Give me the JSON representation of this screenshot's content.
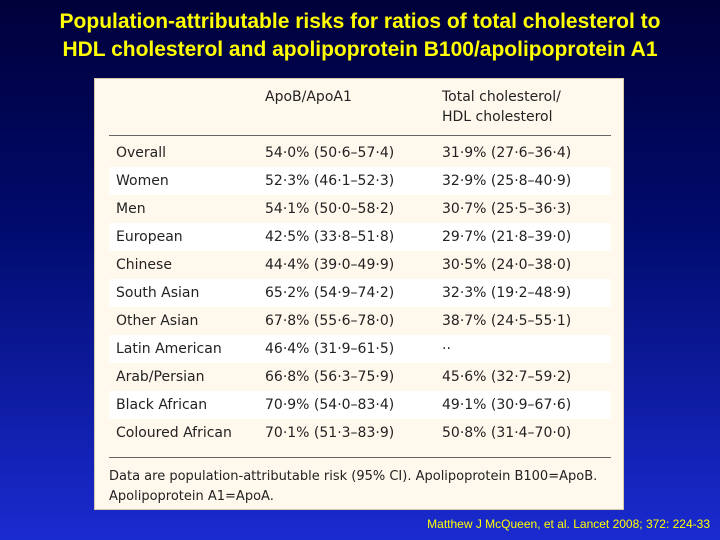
{
  "slide": {
    "title_line1": "Population-attributable risks for ratios of total cholesterol to",
    "title_line2": "HDL cholesterol and apolipoprotein B100/apolipoprotein A1",
    "citation": "Matthew J McQueen, et al. Lancet 2008; 372: 224-33"
  },
  "table": {
    "col1_header": "ApoB/ApoA1",
    "col2_header_line1": "Total cholesterol/",
    "col2_header_line2": "HDL cholesterol",
    "rows": [
      {
        "group": "Overall",
        "apob": "54·0% (50·6–57·4)",
        "tc": "31·9% (27·6–36·4)"
      },
      {
        "group": "Women",
        "apob": "52·3% (46·1–52·3)",
        "tc": "32·9% (25·8–40·9)"
      },
      {
        "group": "Men",
        "apob": "54·1% (50·0–58·2)",
        "tc": "30·7% (25·5–36·3)"
      },
      {
        "group": "European",
        "apob": "42·5% (33·8–51·8)",
        "tc": "29·7% (21·8–39·0)"
      },
      {
        "group": "Chinese",
        "apob": "44·4% (39·0–49·9)",
        "tc": "30·5% (24·0–38·0)"
      },
      {
        "group": "South Asian",
        "apob": "65·2% (54·9–74·2)",
        "tc": "32·3% (19·2–48·9)"
      },
      {
        "group": "Other Asian",
        "apob": "67·8% (55·6–78·0)",
        "tc": "38·7% (24·5–55·1)"
      },
      {
        "group": "Latin American",
        "apob": "46·4% (31·9–61·5)",
        "tc": "··"
      },
      {
        "group": "Arab/Persian",
        "apob": "66·8% (56·3–75·9)",
        "tc": "45·6% (32·7–59·2)"
      },
      {
        "group": "Black African",
        "apob": "70·9% (54·0–83·4)",
        "tc": "49·1% (30·9–67·6)"
      },
      {
        "group": "Coloured African",
        "apob": "70·1% (51·3–83·9)",
        "tc": "50·8% (31·4–70·0)"
      }
    ],
    "note_line1": "Data are population-attributable risk (95% CI). Apolipoprotein B100=ApoB.",
    "note_line2": "Apolipoprotein A1=ApoA."
  }
}
